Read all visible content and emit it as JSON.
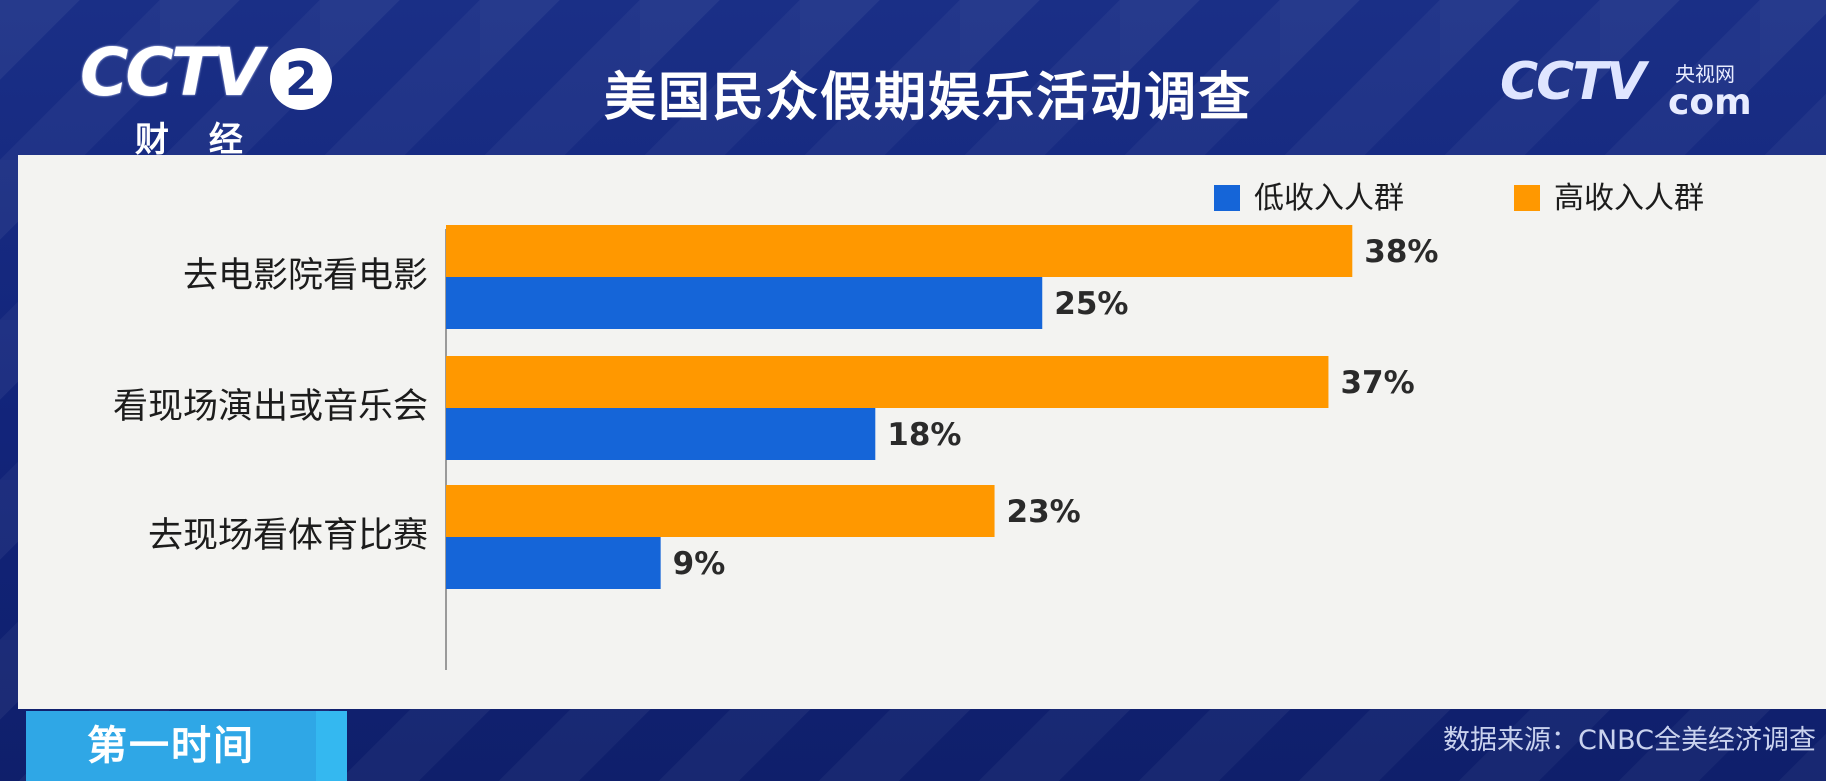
{
  "channel": {
    "logo": "CCTV",
    "number": "2",
    "name": "财 经"
  },
  "site_logo": {
    "text": "CCTV",
    "subtitle": "央视网",
    "suffix": "com"
  },
  "program": "第一时间",
  "source": "数据来源：CNBC全美经济调查",
  "chart_data": {
    "type": "bar",
    "orientation": "horizontal",
    "title": "美国民众假期娱乐活动调查",
    "categories": [
      "去电影院看电影",
      "看现场演出或音乐会",
      "去现场看体育比赛"
    ],
    "series": [
      {
        "name": "高收入人群",
        "color": "#ff9800",
        "values": [
          38,
          37,
          23
        ],
        "labels": [
          "38%",
          "37%",
          "23%"
        ]
      },
      {
        "name": "低收入人群",
        "color": "#1565d8",
        "values": [
          25,
          18,
          9
        ],
        "labels": [
          "25%",
          "18%",
          "9%"
        ]
      }
    ],
    "legend": {
      "placement": "top-right",
      "order": [
        "低收入人群",
        "高收入人群"
      ]
    },
    "unit": "%",
    "grid": false
  }
}
